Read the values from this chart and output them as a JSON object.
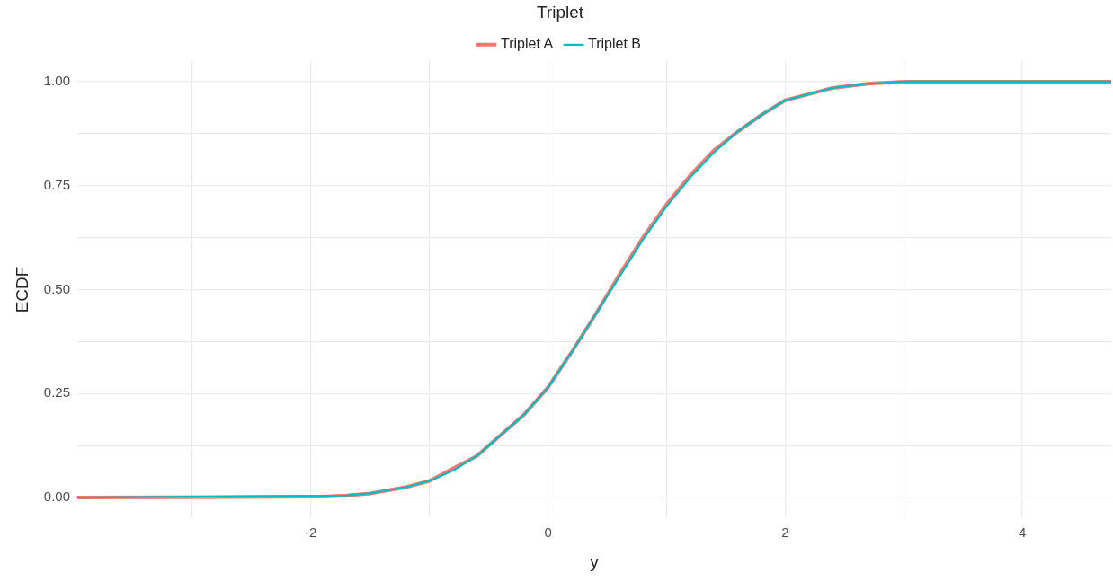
{
  "chart_data": {
    "type": "line",
    "xlabel": "y",
    "ylabel": "ECDF",
    "legend_title": "Triplet",
    "legend": "top",
    "grid": true,
    "marker": "none",
    "xlim": [
      -3.97,
      4.75
    ],
    "ylim": [
      -0.05,
      1.05
    ],
    "xticks": [
      {
        "value": -3,
        "label": null
      },
      -2,
      {
        "value": -1,
        "label": null
      },
      0,
      {
        "value": 1,
        "label": null
      },
      2,
      {
        "value": 3,
        "label": null
      },
      4
    ],
    "yticks": [
      {
        "value": 0,
        "label": "0.00"
      },
      {
        "value": 0.125,
        "label": null
      },
      {
        "value": 0.25,
        "label": "0.25"
      },
      {
        "value": 0.375,
        "label": null
      },
      {
        "value": 0.5,
        "label": "0.50"
      },
      {
        "value": 0.625,
        "label": null
      },
      {
        "value": 0.75,
        "label": "0.75"
      },
      {
        "value": 0.875,
        "label": null
      },
      {
        "value": 1,
        "label": "1.00"
      }
    ],
    "series": [
      {
        "name": "Triplet A",
        "color": "#f8766d",
        "x": [
          -3.97,
          -1.9,
          -1.7,
          -1.5,
          -1.2,
          -1.0,
          -0.8,
          -0.6,
          -0.4,
          -0.2,
          0.0,
          0.2,
          0.4,
          0.6,
          0.8,
          1.0,
          1.2,
          1.4,
          1.6,
          1.8,
          2.0,
          2.2,
          2.4,
          2.7,
          3.0,
          4.75
        ],
        "values": [
          0,
          0.002,
          0.005,
          0.01,
          0.025,
          0.04,
          0.07,
          0.1,
          0.15,
          0.2,
          0.265,
          0.35,
          0.44,
          0.535,
          0.625,
          0.705,
          0.775,
          0.835,
          0.88,
          0.92,
          0.955,
          0.97,
          0.985,
          0.995,
          1,
          1
        ]
      },
      {
        "name": "Triplet B",
        "color": "#00bfc4",
        "x": [
          -3.97,
          -1.7,
          -1.5,
          -1.2,
          -1.0,
          -0.8,
          -0.6,
          -0.4,
          -0.2,
          0.0,
          0.2,
          0.4,
          0.6,
          0.8,
          1.0,
          1.2,
          1.4,
          1.6,
          1.8,
          2.0,
          2.2,
          2.4,
          2.7,
          3.0,
          4.75
        ],
        "values": [
          0,
          0.005,
          0.01,
          0.025,
          0.04,
          0.065,
          0.1,
          0.15,
          0.2,
          0.265,
          0.35,
          0.44,
          0.53,
          0.62,
          0.7,
          0.77,
          0.83,
          0.88,
          0.92,
          0.955,
          0.97,
          0.985,
          0.995,
          1,
          1
        ]
      }
    ]
  }
}
